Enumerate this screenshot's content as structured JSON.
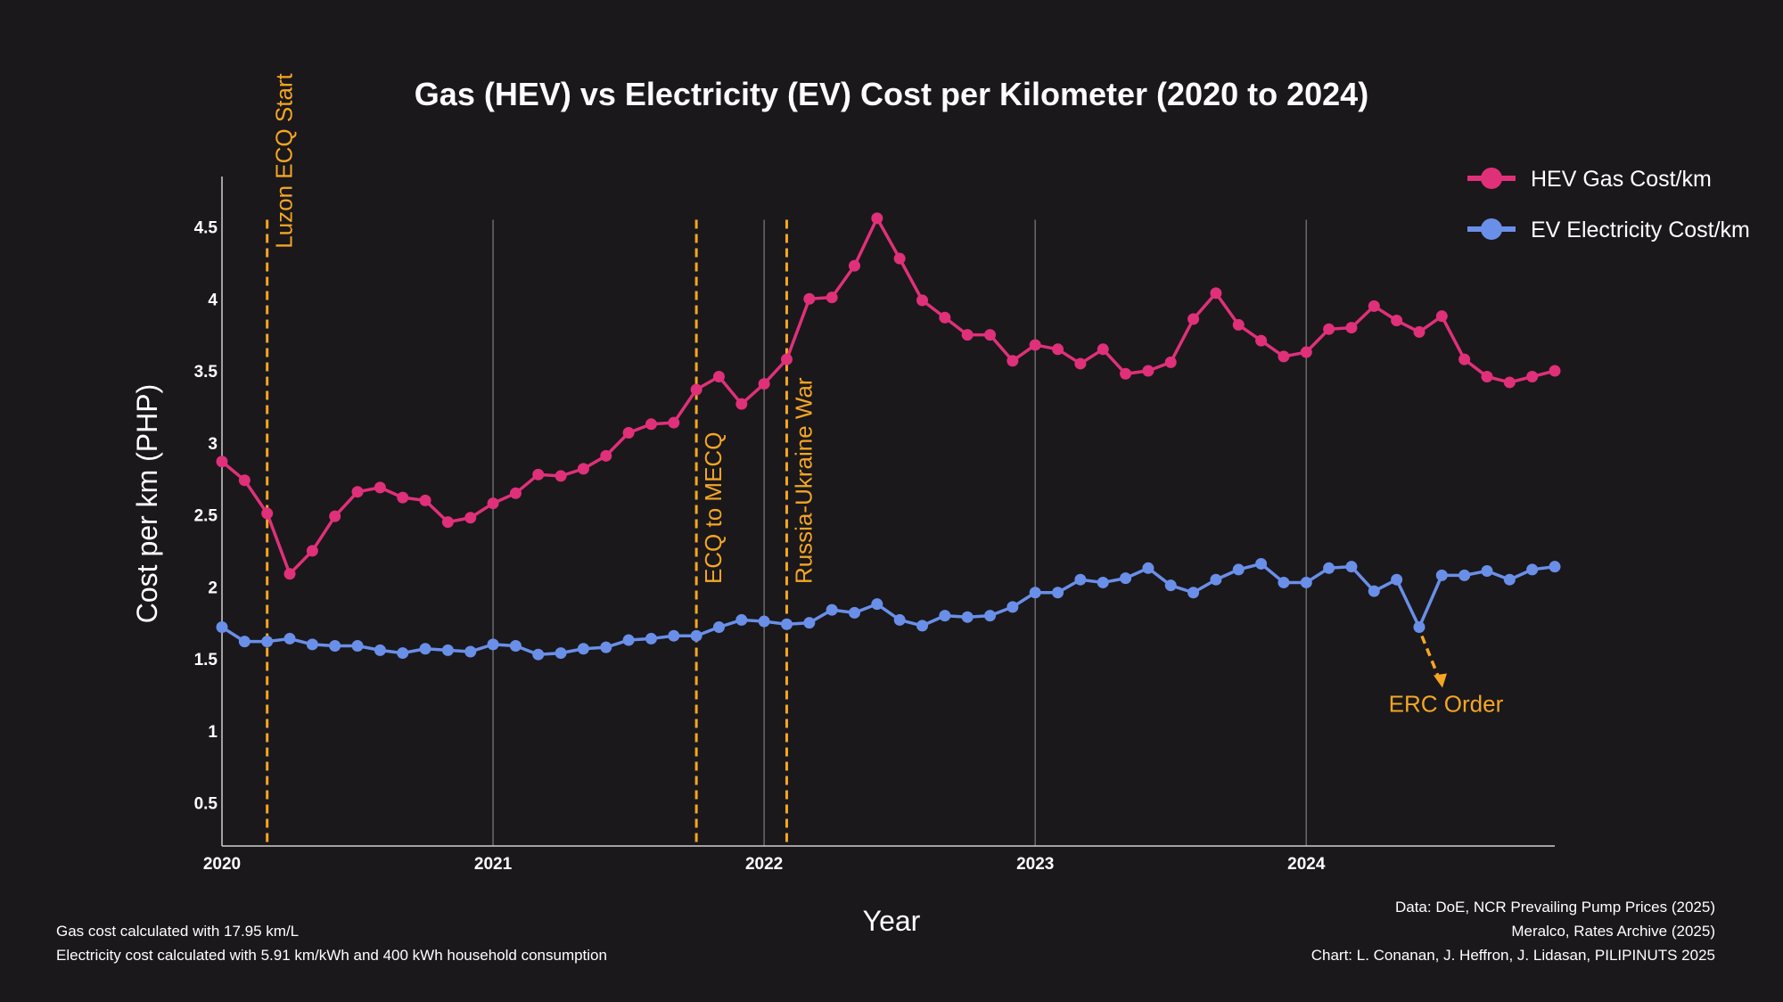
{
  "chart_data": {
    "type": "line",
    "title": "Gas (HEV) vs Electricity (EV) Cost per Kilometer (2020 to 2024)",
    "xlabel": "Year",
    "ylabel": "Cost per km (PHP)",
    "xlim": [
      "2020-01",
      "2024-12"
    ],
    "ylim": [
      0.2,
      4.85
    ],
    "x_ticks": [
      "2020",
      "2021",
      "2022",
      "2023",
      "2024"
    ],
    "y_ticks": [
      "0.5",
      "1",
      "1.5",
      "2",
      "2.5",
      "3",
      "3.5",
      "4",
      "4.5"
    ],
    "y_tick_values": [
      0.5,
      1,
      1.5,
      2,
      2.5,
      3,
      3.5,
      4,
      4.5
    ],
    "grid": "vertical lines at each year",
    "legend_position": "top-right",
    "x": [
      "2020-01",
      "2020-02",
      "2020-03",
      "2020-04",
      "2020-05",
      "2020-06",
      "2020-07",
      "2020-08",
      "2020-09",
      "2020-10",
      "2020-11",
      "2020-12",
      "2021-01",
      "2021-02",
      "2021-03",
      "2021-04",
      "2021-05",
      "2021-06",
      "2021-07",
      "2021-08",
      "2021-09",
      "2021-10",
      "2021-11",
      "2021-12",
      "2022-01",
      "2022-02",
      "2022-03",
      "2022-04",
      "2022-05",
      "2022-06",
      "2022-07",
      "2022-08",
      "2022-09",
      "2022-10",
      "2022-11",
      "2022-12",
      "2023-01",
      "2023-02",
      "2023-03",
      "2023-04",
      "2023-05",
      "2023-06",
      "2023-07",
      "2023-08",
      "2023-09",
      "2023-10",
      "2023-11",
      "2023-12",
      "2024-01",
      "2024-02",
      "2024-03",
      "2024-04",
      "2024-05",
      "2024-06",
      "2024-07",
      "2024-08",
      "2024-09",
      "2024-10",
      "2024-11",
      "2024-12"
    ],
    "series": [
      {
        "name": "HEV Gas Cost/km",
        "color": "#e0307a",
        "values": [
          2.87,
          2.74,
          2.51,
          2.09,
          2.25,
          2.49,
          2.66,
          2.69,
          2.62,
          2.6,
          2.45,
          2.48,
          2.58,
          2.65,
          2.78,
          2.77,
          2.82,
          2.91,
          3.07,
          3.13,
          3.14,
          3.37,
          3.46,
          3.27,
          3.41,
          3.58,
          4.0,
          4.01,
          4.23,
          4.56,
          4.28,
          3.99,
          3.87,
          3.75,
          3.75,
          3.57,
          3.68,
          3.65,
          3.55,
          3.65,
          3.48,
          3.5,
          3.56,
          3.86,
          4.04,
          3.82,
          3.71,
          3.6,
          3.63,
          3.79,
          3.8,
          3.95,
          3.85,
          3.77,
          3.88,
          3.58,
          3.46,
          3.42,
          3.46,
          3.5
        ]
      },
      {
        "name": "EV Electricity Cost/km",
        "color": "#6a8fe8",
        "values": [
          1.72,
          1.62,
          1.62,
          1.64,
          1.6,
          1.59,
          1.59,
          1.56,
          1.54,
          1.57,
          1.56,
          1.55,
          1.6,
          1.59,
          1.53,
          1.54,
          1.57,
          1.58,
          1.63,
          1.64,
          1.66,
          1.66,
          1.72,
          1.77,
          1.76,
          1.74,
          1.75,
          1.84,
          1.82,
          1.88,
          1.77,
          1.73,
          1.8,
          1.79,
          1.8,
          1.86,
          1.96,
          1.96,
          2.05,
          2.03,
          2.06,
          2.13,
          2.01,
          1.96,
          2.05,
          2.12,
          2.16,
          2.03,
          2.03,
          2.13,
          2.14,
          1.97,
          2.05,
          1.72,
          2.08,
          2.08,
          2.11,
          2.05,
          2.12,
          2.14
        ]
      }
    ],
    "annotations": [
      {
        "label": "Luzon ECQ Start",
        "date": "2020-03"
      },
      {
        "label": "ECQ to MECQ",
        "date": "2021-10"
      },
      {
        "label": "Russia-Ukraine War",
        "date": "2022-02"
      }
    ],
    "point_annotation": {
      "label": "ERC Order",
      "date": "2024-06",
      "series": "EV Electricity Cost/km"
    },
    "annotation_color": "#f5a623",
    "notes_left": [
      "Gas cost calculated with 17.95 km/L",
      "Electricity cost calculated with 5.91 km/kWh and 400 kWh household consumption"
    ],
    "notes_right": [
      "Data: DoE, NCR Prevailing Pump Prices (2025)",
      "Meralco, Rates Archive (2025)",
      "Chart: L. Conanan, J. Heffron, J. Lidasan, PILIPINUTS 2025"
    ]
  }
}
